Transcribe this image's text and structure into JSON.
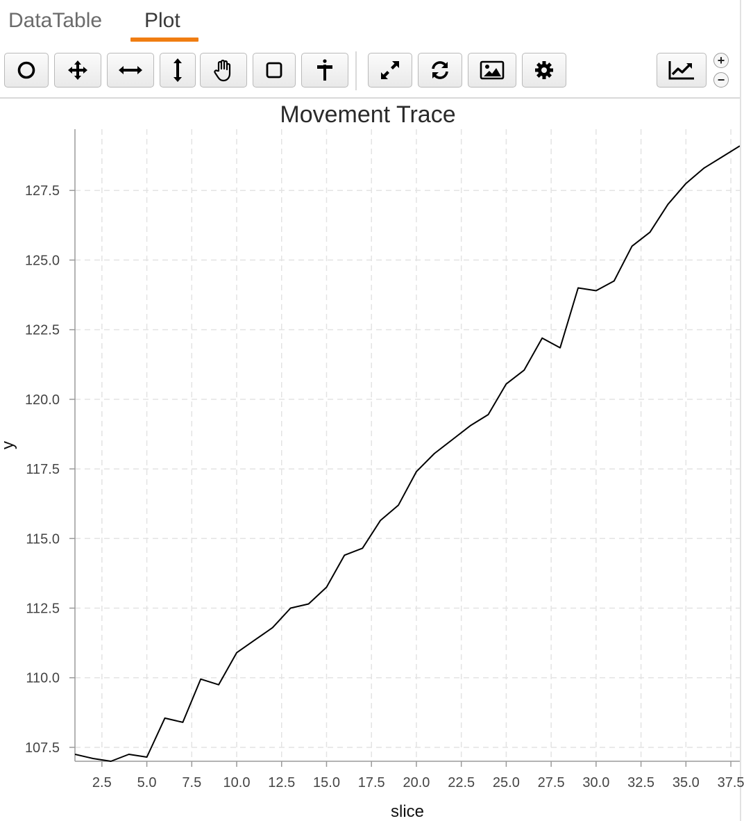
{
  "tabs": [
    {
      "label": "DataTable",
      "active": false
    },
    {
      "label": "Plot",
      "active": true
    }
  ],
  "accent_color": "#f07d12",
  "toolbar": {
    "buttons": [
      {
        "name": "select-tool-button",
        "icon": "circle-icon"
      },
      {
        "name": "pan-tool-button",
        "icon": "move-arrows-icon"
      },
      {
        "name": "horizontal-zoom-button",
        "icon": "horizontal-arrows-icon"
      },
      {
        "name": "vertical-zoom-button",
        "icon": "vertical-arrows-icon"
      },
      {
        "name": "hand-tool-button",
        "icon": "hand-icon"
      },
      {
        "name": "box-select-button",
        "icon": "square-icon"
      },
      {
        "name": "crosshair-button",
        "icon": "signpost-icon"
      },
      {
        "name": "fullscreen-button",
        "icon": "expand-icon"
      },
      {
        "name": "refresh-button",
        "icon": "refresh-icon"
      },
      {
        "name": "export-image-button",
        "icon": "image-icon"
      },
      {
        "name": "settings-button",
        "icon": "gear-icon"
      },
      {
        "name": "chart-type-button",
        "icon": "line-chart-icon"
      }
    ],
    "zoom_in_label": "+",
    "zoom_out_label": "−"
  },
  "chart_data": {
    "type": "line",
    "title": "Movement Trace",
    "xlabel": "slice",
    "ylabel": "y",
    "xlim": [
      1,
      38
    ],
    "ylim": [
      107.0,
      129.7
    ],
    "x_ticks": [
      2.5,
      5.0,
      7.5,
      10.0,
      12.5,
      15.0,
      17.5,
      20.0,
      22.5,
      25.0,
      27.5,
      30.0,
      32.5,
      35.0,
      37.5
    ],
    "x_tick_labels": [
      "2.5",
      "5.0",
      "7.5",
      "10.0",
      "12.5",
      "15.0",
      "17.5",
      "20.0",
      "22.5",
      "25.0",
      "27.5",
      "30.0",
      "32.5",
      "35.0",
      "37.5"
    ],
    "y_ticks": [
      107.5,
      110.0,
      112.5,
      115.0,
      117.5,
      120.0,
      122.5,
      125.0,
      127.5
    ],
    "y_tick_labels": [
      "107.5",
      "110.0",
      "112.5",
      "115.0",
      "117.5",
      "120.0",
      "122.5",
      "125.0",
      "127.5"
    ],
    "grid": true,
    "line_color": "#000000",
    "series": [
      {
        "x": [
          1,
          2,
          3,
          4,
          5,
          6,
          7,
          8,
          9,
          10,
          11,
          12,
          13,
          14,
          15,
          16,
          17,
          18,
          19,
          20,
          21,
          22,
          23,
          24,
          25,
          26,
          27,
          28,
          29,
          30,
          31,
          32,
          33,
          34,
          35,
          36,
          37,
          38
        ],
        "values": [
          107.25,
          107.1,
          107.0,
          107.25,
          107.15,
          108.55,
          108.4,
          109.95,
          109.75,
          110.9,
          111.35,
          111.8,
          112.5,
          112.65,
          113.25,
          114.4,
          114.65,
          115.65,
          116.2,
          117.4,
          118.05,
          118.55,
          119.05,
          119.45,
          120.55,
          121.05,
          122.2,
          121.85,
          124.0,
          123.9,
          124.25,
          125.5,
          126.0,
          127.0,
          127.75,
          128.3,
          128.7,
          129.1
        ]
      }
    ]
  }
}
